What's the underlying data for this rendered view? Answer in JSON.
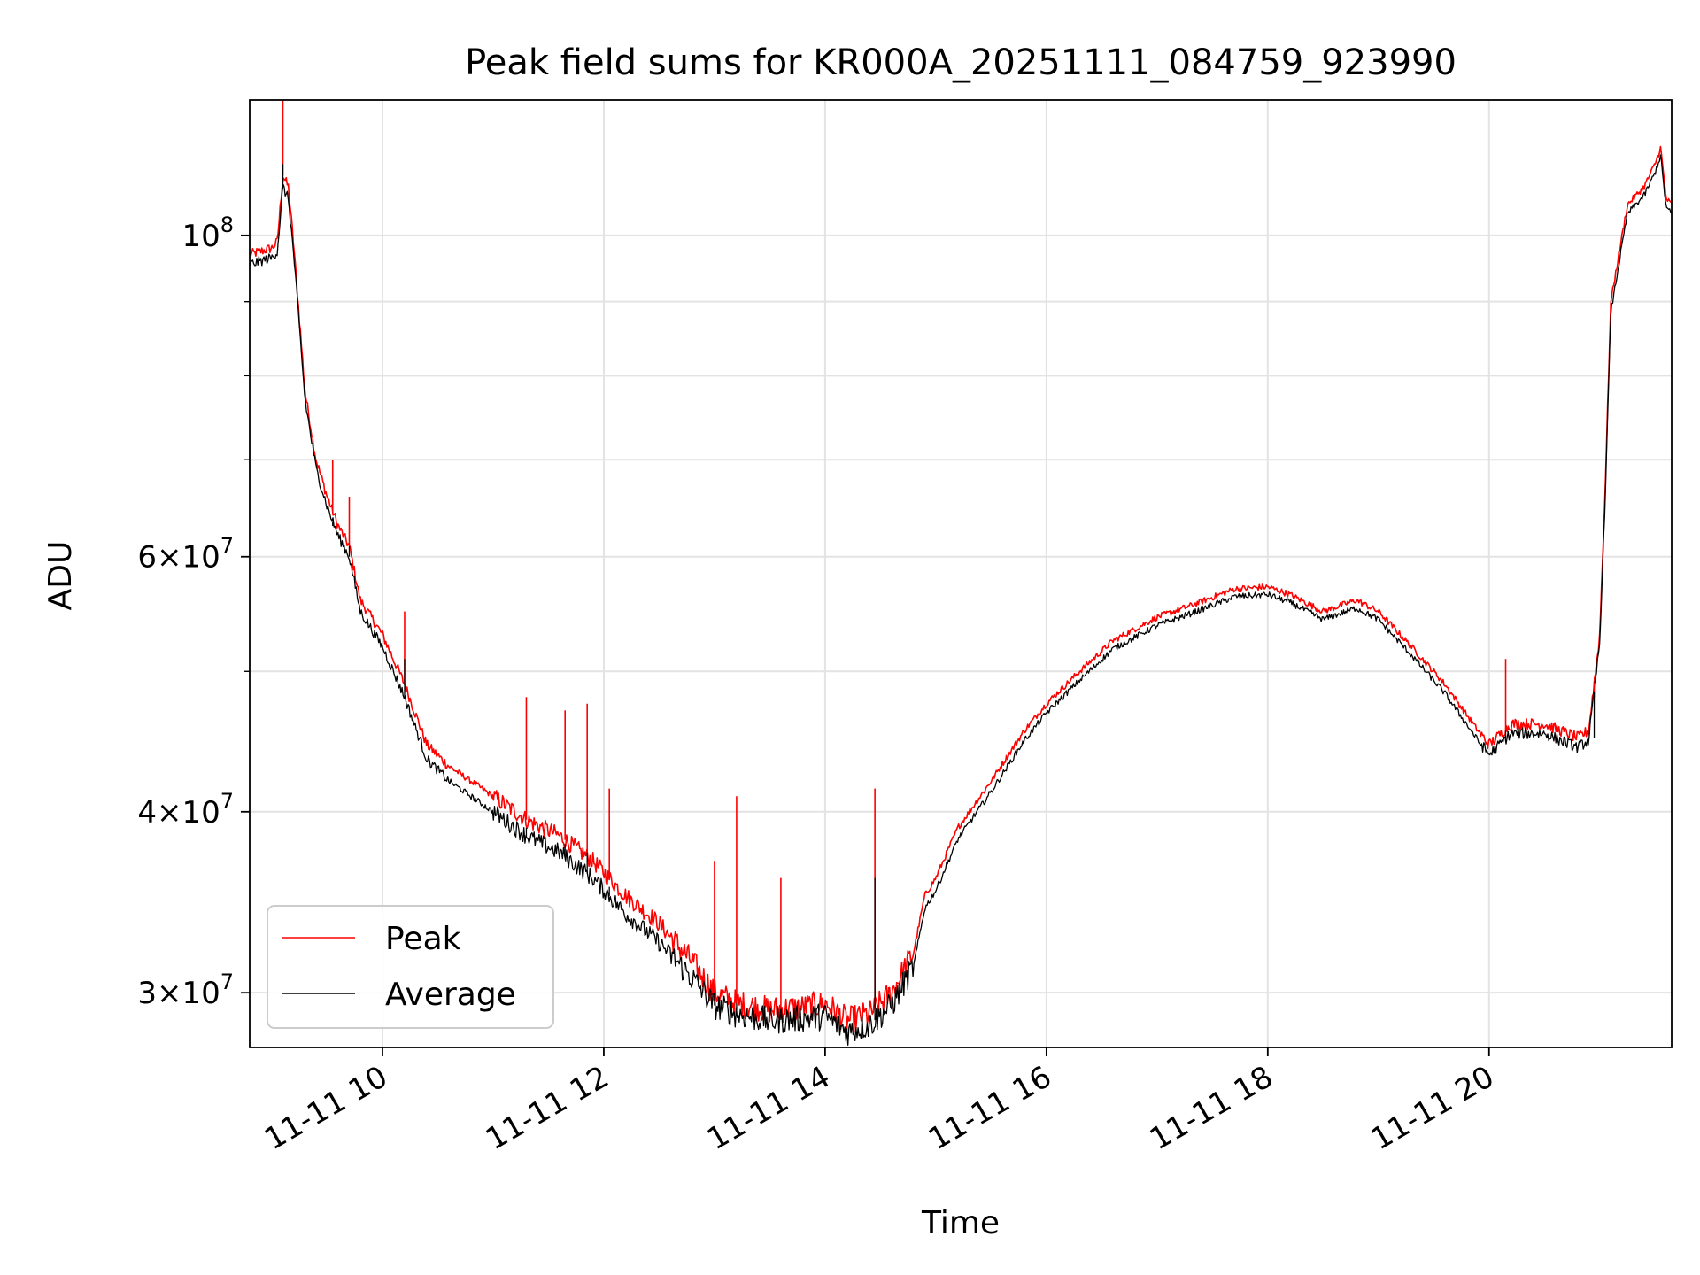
{
  "chart_data": {
    "type": "line",
    "title": "Peak field sums for KR000A_20251111_084759_923990",
    "xlabel": "Time",
    "ylabel": "ADU",
    "yscale": "log",
    "grid": true,
    "legend_position": "lower-left",
    "xlim": [
      8.8,
      21.65
    ],
    "ylim": [
      27500000,
      124000000
    ],
    "x_ticks": [
      {
        "value": 10,
        "label": "11-11 10"
      },
      {
        "value": 12,
        "label": "11-11 12"
      },
      {
        "value": 14,
        "label": "11-11 14"
      },
      {
        "value": 16,
        "label": "11-11 16"
      },
      {
        "value": 18,
        "label": "11-11 18"
      },
      {
        "value": 20,
        "label": "11-11 20"
      }
    ],
    "y_ticks": [
      {
        "value": 30000000,
        "mantissa": "3",
        "exponent": "7"
      },
      {
        "value": 40000000,
        "mantissa": "4",
        "exponent": "7"
      },
      {
        "value": 60000000,
        "mantissa": "6",
        "exponent": "7"
      },
      {
        "value": 100000000,
        "mantissa": "",
        "exponent": "8"
      }
    ],
    "y_minor_ticks": [
      50000000,
      70000000,
      80000000,
      90000000
    ],
    "series": [
      {
        "name": "Peak",
        "color": "#ff0000",
        "x": [
          8.8,
          9.0,
          9.05,
          9.1,
          9.15,
          9.2,
          9.3,
          9.4,
          9.5,
          9.6,
          9.7,
          9.8,
          10.0,
          10.2,
          10.4,
          10.6,
          10.8,
          11.0,
          11.3,
          11.6,
          11.9,
          12.2,
          12.5,
          12.8,
          13.0,
          13.2,
          13.5,
          13.8,
          14.0,
          14.2,
          14.4,
          14.6,
          14.8,
          14.9,
          15.0,
          15.2,
          15.5,
          15.8,
          16.0,
          16.3,
          16.6,
          17.0,
          17.3,
          17.7,
          18.0,
          18.2,
          18.5,
          18.8,
          19.0,
          19.3,
          19.6,
          19.9,
          20.0,
          20.2,
          20.5,
          20.8,
          20.9,
          21.0,
          21.05,
          21.1,
          21.25,
          21.3,
          21.4,
          21.5,
          21.55,
          21.6,
          21.65
        ],
        "y": [
          97000000,
          98000000,
          99000000,
          110000000,
          108000000,
          98000000,
          78000000,
          70000000,
          66000000,
          63000000,
          61000000,
          56000000,
          53000000,
          49000000,
          44500000,
          43000000,
          42000000,
          41000000,
          39500000,
          38500000,
          37000000,
          35000000,
          33500000,
          31500000,
          30000000,
          29500000,
          29200000,
          29300000,
          29500000,
          28700000,
          29000000,
          30000000,
          32000000,
          35000000,
          36000000,
          39000000,
          42000000,
          45500000,
          47500000,
          50000000,
          52500000,
          54500000,
          55500000,
          57000000,
          57200000,
          56500000,
          55000000,
          56000000,
          55000000,
          52000000,
          49000000,
          45500000,
          44500000,
          46000000,
          46000000,
          45000000,
          45500000,
          53000000,
          67000000,
          90000000,
          105000000,
          106000000,
          108000000,
          112000000,
          115000000,
          106000000,
          105000000
        ]
      },
      {
        "name": "Average",
        "color": "#000000",
        "x": [
          8.8,
          9.0,
          9.05,
          9.1,
          9.15,
          9.2,
          9.3,
          9.4,
          9.5,
          9.6,
          9.7,
          9.8,
          10.0,
          10.2,
          10.4,
          10.6,
          10.8,
          11.0,
          11.3,
          11.6,
          11.9,
          12.2,
          12.5,
          12.8,
          13.0,
          13.2,
          13.5,
          13.8,
          14.0,
          14.2,
          14.4,
          14.6,
          14.8,
          14.9,
          15.0,
          15.2,
          15.5,
          15.8,
          16.0,
          16.3,
          16.6,
          17.0,
          17.3,
          17.7,
          18.0,
          18.2,
          18.5,
          18.8,
          19.0,
          19.3,
          19.6,
          19.9,
          20.0,
          20.2,
          20.5,
          20.8,
          20.9,
          21.0,
          21.05,
          21.1,
          21.25,
          21.3,
          21.4,
          21.5,
          21.55,
          21.6,
          21.65
        ],
        "y": [
          95500000,
          96500000,
          97500000,
          108000000,
          106000000,
          96500000,
          77000000,
          69000000,
          65000000,
          62000000,
          60000000,
          55000000,
          52000000,
          48000000,
          43500000,
          42000000,
          41000000,
          40000000,
          38500000,
          37500000,
          36000000,
          34000000,
          32500000,
          30700000,
          29400000,
          29000000,
          28700000,
          28800000,
          28900000,
          28200000,
          28500000,
          29400000,
          31300000,
          34300000,
          35300000,
          38300000,
          41300000,
          44800000,
          46800000,
          49300000,
          51800000,
          53800000,
          54800000,
          56300000,
          56500000,
          55800000,
          54300000,
          55300000,
          54300000,
          51300000,
          48300000,
          44800000,
          43800000,
          45300000,
          45300000,
          44300000,
          44800000,
          52300000,
          66000000,
          88500000,
          103500000,
          104500000,
          106500000,
          110500000,
          113500000,
          104500000,
          103500000
        ]
      }
    ],
    "spikes": [
      {
        "x": 9.1,
        "peak": 124000000,
        "avg": 112000000
      },
      {
        "x": 9.55,
        "peak": 70000000,
        "avg": 63000000
      },
      {
        "x": 9.7,
        "peak": 66000000,
        "avg": 61000000
      },
      {
        "x": 10.2,
        "peak": 55000000,
        "avg": 51000000
      },
      {
        "x": 11.3,
        "peak": 48000000,
        "avg": 39000000
      },
      {
        "x": 11.65,
        "peak": 47000000,
        "avg": 38000000
      },
      {
        "x": 11.85,
        "peak": 47500000,
        "avg": 37500000
      },
      {
        "x": 12.05,
        "peak": 41500000,
        "avg": 35500000
      },
      {
        "x": 13.0,
        "peak": 37000000,
        "avg": 30000000
      },
      {
        "x": 13.2,
        "peak": 41000000,
        "avg": 29500000
      },
      {
        "x": 13.6,
        "peak": 36000000,
        "avg": 29000000
      },
      {
        "x": 14.45,
        "peak": 41500000,
        "avg": 36000000
      },
      {
        "x": 20.15,
        "peak": 51000000,
        "avg": 45500000
      },
      {
        "x": 20.95,
        "peak": 48000000,
        "avg": 45000000
      }
    ]
  }
}
